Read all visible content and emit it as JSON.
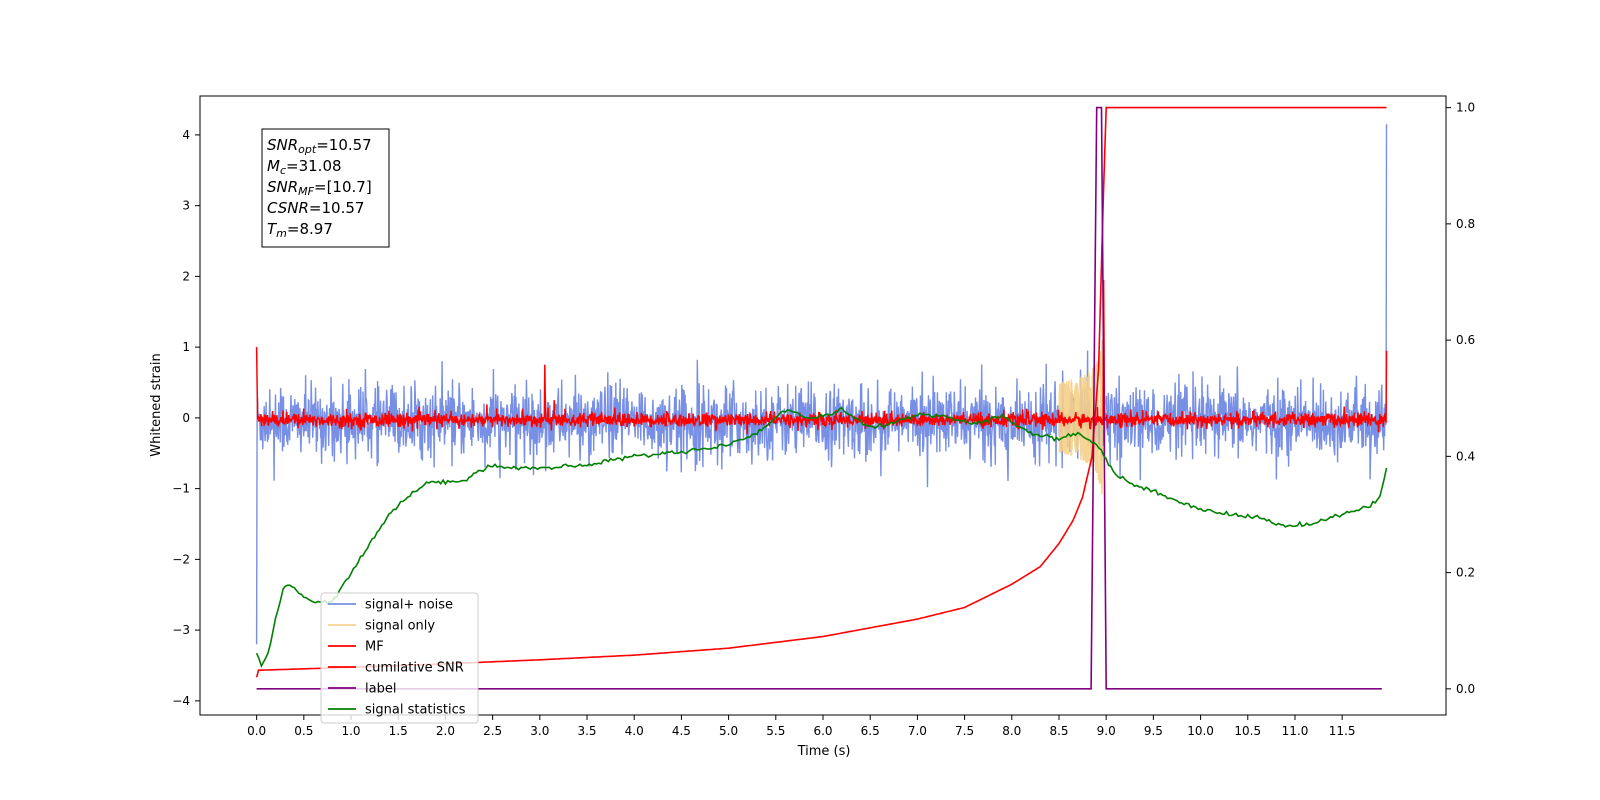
{
  "chart_data": {
    "type": "line",
    "xlabel": "Time (s)",
    "ylabel": "Whitened strain",
    "xlim": [
      -0.6,
      12.6
    ],
    "ylim": [
      -4.2,
      4.55
    ],
    "y2lim": [
      -0.045,
      1.02
    ],
    "xticks": [
      "0.0",
      "0.5",
      "1.0",
      "1.5",
      "2.0",
      "2.5",
      "3.0",
      "3.5",
      "4.0",
      "4.5",
      "5.0",
      "5.5",
      "6.0",
      "6.5",
      "7.0",
      "7.5",
      "8.0",
      "8.5",
      "9.0",
      "9.5",
      "10.0",
      "10.5",
      "11.0",
      "11.5"
    ],
    "yticks": [
      "4",
      "3",
      "2",
      "1",
      "0",
      "−1",
      "−2",
      "−3",
      "−4"
    ],
    "y2ticks": [
      "1.0",
      "0.8",
      "0.6",
      "0.4",
      "0.2",
      "0.0"
    ],
    "grid": false,
    "legend_position": "lower-left",
    "annotation": {
      "lines": [
        {
          "sym": "SNR",
          "sub": "opt",
          "value": "=10.57"
        },
        {
          "sym": "M",
          "sub": "c",
          "value": "=31.08"
        },
        {
          "sym": "SNR",
          "sub": "MF",
          "value": "=[10.7]"
        },
        {
          "sym": "CSNR",
          "sub": "",
          "value": "=10.57"
        },
        {
          "sym": "T",
          "sub": "m",
          "value": "=8.97"
        }
      ]
    },
    "series": [
      {
        "name": "signal+ noise",
        "color": "#6b86e3",
        "axis": "left",
        "kind": "noise",
        "x_range": [
          0,
          11.97
        ],
        "center": -0.05,
        "spread": 0.45,
        "outliers": [
          [
            0.0,
            -3.2
          ],
          [
            11.97,
            4.15
          ]
        ]
      },
      {
        "name": "signal only",
        "color": "#f5cf87",
        "axis": "left",
        "kind": "chirp",
        "x_range": [
          8.5,
          9.0
        ],
        "peak_x": 8.97,
        "peak": 1.1
      },
      {
        "name": "MF",
        "color": "#ff0000",
        "axis": "left",
        "kind": "noise",
        "x_range": [
          0,
          11.97
        ],
        "center": -0.03,
        "spread": 0.09,
        "points": [
          [
            0.0,
            1.0
          ],
          [
            3.05,
            0.75
          ],
          [
            3.15,
            0.25
          ],
          [
            8.97,
            1.95
          ],
          [
            11.97,
            0.95
          ]
        ]
      },
      {
        "name": "cumilative SNR",
        "color": "#ff0000",
        "axis": "right",
        "x": [
          0.0,
          0.02,
          1.0,
          2.0,
          3.0,
          4.0,
          5.0,
          6.0,
          7.0,
          7.5,
          8.0,
          8.3,
          8.5,
          8.65,
          8.75,
          8.85,
          8.92,
          8.97,
          9.0,
          11.97
        ],
        "values": [
          0.02,
          0.032,
          0.037,
          0.043,
          0.05,
          0.058,
          0.07,
          0.09,
          0.12,
          0.14,
          0.18,
          0.21,
          0.25,
          0.29,
          0.33,
          0.4,
          0.55,
          0.85,
          1.0,
          1.0
        ]
      },
      {
        "name": "label",
        "color": "#800080",
        "axis": "right",
        "x": [
          0.0,
          8.84,
          8.9,
          8.95,
          9.0,
          11.92
        ],
        "values": [
          0.0,
          0.0,
          1.0,
          1.0,
          0.0,
          0.0
        ]
      },
      {
        "name": "signal statistics",
        "color": "#008000",
        "axis": "right",
        "x": [
          0.0,
          0.05,
          0.12,
          0.2,
          0.28,
          0.35,
          0.45,
          0.6,
          0.8,
          1.0,
          1.2,
          1.4,
          1.6,
          1.8,
          2.0,
          2.2,
          2.3,
          2.5,
          2.7,
          2.9,
          3.1,
          3.5,
          3.8,
          4.0,
          4.3,
          4.6,
          5.0,
          5.3,
          5.6,
          5.9,
          6.2,
          6.5,
          6.8,
          7.0,
          7.3,
          7.6,
          7.9,
          8.2,
          8.5,
          8.7,
          8.9,
          9.1,
          9.3,
          9.5,
          9.8,
          10.0,
          10.3,
          10.6,
          10.9,
          11.2,
          11.5,
          11.8,
          11.9,
          11.97
        ],
        "values": [
          0.06,
          0.04,
          0.06,
          0.12,
          0.17,
          0.18,
          0.165,
          0.15,
          0.15,
          0.2,
          0.25,
          0.3,
          0.33,
          0.355,
          0.355,
          0.36,
          0.37,
          0.385,
          0.38,
          0.38,
          0.38,
          0.385,
          0.395,
          0.4,
          0.405,
          0.41,
          0.42,
          0.44,
          0.48,
          0.465,
          0.48,
          0.45,
          0.46,
          0.47,
          0.47,
          0.455,
          0.47,
          0.44,
          0.43,
          0.44,
          0.42,
          0.37,
          0.35,
          0.34,
          0.32,
          0.31,
          0.3,
          0.295,
          0.28,
          0.285,
          0.3,
          0.315,
          0.33,
          0.38
        ]
      }
    ]
  }
}
